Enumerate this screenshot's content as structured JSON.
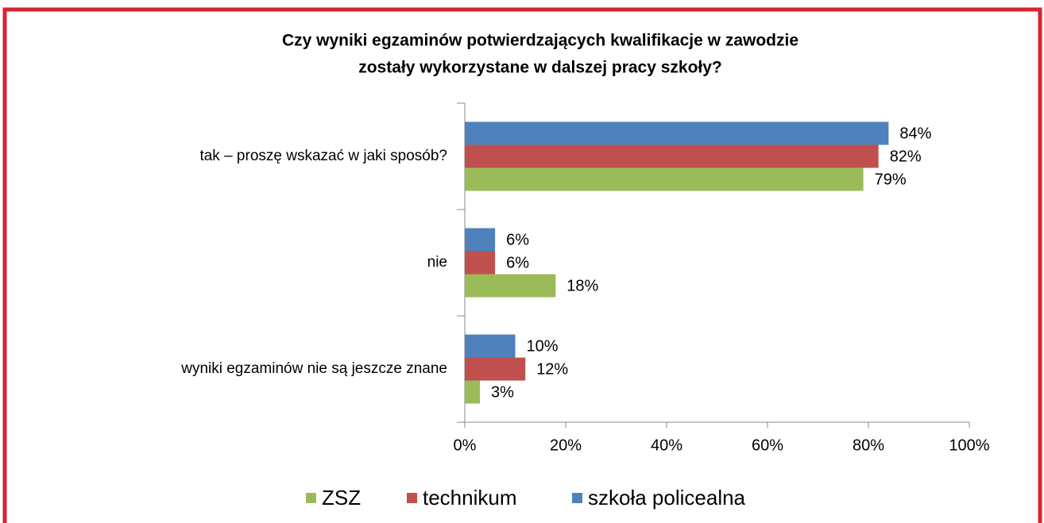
{
  "chart_data": {
    "type": "bar",
    "orientation": "horizontal",
    "title": [
      "Czy wyniki egzaminów potwierdzających kwalifikacje w zawodzie",
      "zostały wykorzystane w dalszej pracy szkoły?"
    ],
    "categories": [
      "tak – proszę wskazać w jaki sposób?",
      "nie",
      "wyniki egzaminów nie są jeszcze znane"
    ],
    "series": [
      {
        "name": "ZSZ",
        "color": "#9bbb59",
        "values": [
          79,
          18,
          3
        ],
        "value_labels": [
          "79%",
          "18%",
          "3%"
        ]
      },
      {
        "name": "technikum",
        "color": "#c0504d",
        "values": [
          82,
          6,
          12
        ],
        "value_labels": [
          "82%",
          "6%",
          "12%"
        ]
      },
      {
        "name": "szkoła policealna",
        "color": "#4f81bd",
        "values": [
          84,
          6,
          10
        ],
        "value_labels": [
          "84%",
          "6%",
          "10%"
        ]
      }
    ],
    "xlim": [
      0,
      100
    ],
    "xticks": [
      {
        "value": 0,
        "label": "0%"
      },
      {
        "value": 20,
        "label": "20%"
      },
      {
        "value": 40,
        "label": "40%"
      },
      {
        "value": 60,
        "label": "60%"
      },
      {
        "value": 80,
        "label": "80%"
      },
      {
        "value": 100,
        "label": "100%"
      }
    ],
    "legend": "bottom",
    "grid": false
  }
}
